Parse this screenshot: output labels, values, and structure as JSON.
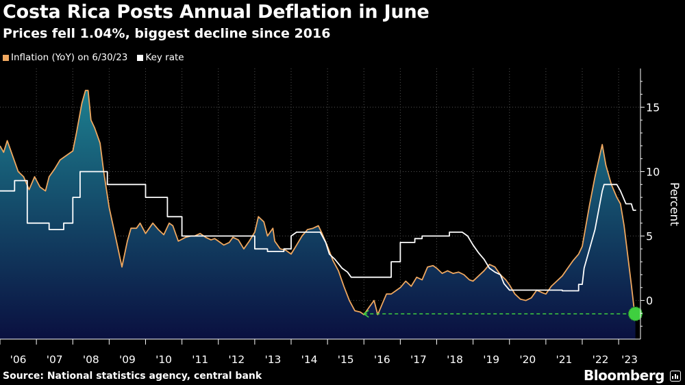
{
  "title": "Costa Rica Posts Annual Deflation in June",
  "subtitle": "Prices fell 1.04%, biggest decline since 2016",
  "legend": {
    "inflation_label": "Inflation (YoY) on 6/30/23",
    "keyrate_label": "Key rate"
  },
  "footer": {
    "source": "Source: National statistics agency, central bank",
    "brand": "Bloomberg"
  },
  "colors": {
    "inflation_line": "#f0a860",
    "keyrate_line": "#ffffff",
    "area_top": "#1d7f8f",
    "area_bottom": "#0a1040",
    "marker": "#3fcf3f",
    "grid": "#555555"
  },
  "chart_data": {
    "type": "line",
    "xlabel": "",
    "ylabel": "Percent",
    "x_range": [
      2006.0,
      2023.6
    ],
    "ylim": [
      -3,
      18
    ],
    "y_ticks": [
      0,
      5,
      10,
      15
    ],
    "x_tick_labels": [
      "'06",
      "'07",
      "'08",
      "'09",
      "'10",
      "'11",
      "'12",
      "'13",
      "'14",
      "'15",
      "'16",
      "'17",
      "'18",
      "'19",
      "'20",
      "'21",
      "'22",
      "'23"
    ],
    "x_tick_years": [
      2006,
      2007,
      2008,
      2009,
      2010,
      2011,
      2012,
      2013,
      2014,
      2015,
      2016,
      2017,
      2018,
      2019,
      2020,
      2021,
      2022,
      2023
    ],
    "grid": "vertical",
    "series": [
      {
        "name": "Inflation (YoY) on 6/30/23",
        "style": "area-line",
        "points": [
          [
            2006.0,
            12.0
          ],
          [
            2006.1,
            11.5
          ],
          [
            2006.2,
            12.4
          ],
          [
            2006.35,
            11.2
          ],
          [
            2006.5,
            10.0
          ],
          [
            2006.65,
            9.6
          ],
          [
            2006.8,
            8.6
          ],
          [
            2006.95,
            9.6
          ],
          [
            2007.1,
            8.8
          ],
          [
            2007.25,
            8.5
          ],
          [
            2007.35,
            9.6
          ],
          [
            2007.5,
            10.2
          ],
          [
            2007.65,
            10.9
          ],
          [
            2007.8,
            11.2
          ],
          [
            2007.9,
            11.4
          ],
          [
            2008.0,
            11.6
          ],
          [
            2008.1,
            13.0
          ],
          [
            2008.25,
            15.3
          ],
          [
            2008.35,
            16.3
          ],
          [
            2008.42,
            16.3
          ],
          [
            2008.5,
            14.0
          ],
          [
            2008.6,
            13.4
          ],
          [
            2008.75,
            12.2
          ],
          [
            2008.85,
            10.0
          ],
          [
            2009.0,
            7.2
          ],
          [
            2009.2,
            4.6
          ],
          [
            2009.35,
            2.6
          ],
          [
            2009.5,
            4.6
          ],
          [
            2009.6,
            5.6
          ],
          [
            2009.75,
            5.6
          ],
          [
            2009.85,
            6.0
          ],
          [
            2010.0,
            5.2
          ],
          [
            2010.2,
            6.0
          ],
          [
            2010.35,
            5.5
          ],
          [
            2010.5,
            5.1
          ],
          [
            2010.65,
            6.0
          ],
          [
            2010.75,
            5.8
          ],
          [
            2010.9,
            4.6
          ],
          [
            2011.1,
            4.9
          ],
          [
            2011.25,
            5.0
          ],
          [
            2011.35,
            5.0
          ],
          [
            2011.5,
            5.2
          ],
          [
            2011.65,
            4.9
          ],
          [
            2011.8,
            4.7
          ],
          [
            2011.9,
            4.8
          ],
          [
            2012.0,
            4.6
          ],
          [
            2012.15,
            4.3
          ],
          [
            2012.3,
            4.5
          ],
          [
            2012.4,
            4.9
          ],
          [
            2012.55,
            4.7
          ],
          [
            2012.7,
            4.0
          ],
          [
            2012.85,
            4.6
          ],
          [
            2013.0,
            5.3
          ],
          [
            2013.1,
            6.5
          ],
          [
            2013.25,
            6.1
          ],
          [
            2013.35,
            5.0
          ],
          [
            2013.5,
            5.6
          ],
          [
            2013.55,
            4.6
          ],
          [
            2013.7,
            4.0
          ],
          [
            2013.85,
            3.9
          ],
          [
            2014.0,
            3.6
          ],
          [
            2014.15,
            4.3
          ],
          [
            2014.3,
            5.0
          ],
          [
            2014.45,
            5.5
          ],
          [
            2014.6,
            5.6
          ],
          [
            2014.75,
            5.8
          ],
          [
            2014.85,
            5.2
          ],
          [
            2015.0,
            4.2
          ],
          [
            2015.15,
            3.1
          ],
          [
            2015.3,
            2.3
          ],
          [
            2015.45,
            1.1
          ],
          [
            2015.6,
            0.0
          ],
          [
            2015.75,
            -0.8
          ],
          [
            2015.9,
            -0.9
          ],
          [
            2016.0,
            -1.1
          ],
          [
            2016.15,
            -0.5
          ],
          [
            2016.28,
            0.0
          ],
          [
            2016.38,
            -1.1
          ],
          [
            2016.5,
            -0.3
          ],
          [
            2016.62,
            0.5
          ],
          [
            2016.75,
            0.5
          ],
          [
            2016.9,
            0.8
          ],
          [
            2017.0,
            1.0
          ],
          [
            2017.15,
            1.5
          ],
          [
            2017.3,
            1.1
          ],
          [
            2017.45,
            1.8
          ],
          [
            2017.6,
            1.6
          ],
          [
            2017.75,
            2.6
          ],
          [
            2017.9,
            2.7
          ],
          [
            2018.0,
            2.5
          ],
          [
            2018.15,
            2.1
          ],
          [
            2018.3,
            2.3
          ],
          [
            2018.45,
            2.1
          ],
          [
            2018.6,
            2.2
          ],
          [
            2018.75,
            2.0
          ],
          [
            2018.9,
            1.6
          ],
          [
            2019.0,
            1.5
          ],
          [
            2019.15,
            1.9
          ],
          [
            2019.3,
            2.3
          ],
          [
            2019.45,
            2.8
          ],
          [
            2019.6,
            2.6
          ],
          [
            2019.75,
            2.0
          ],
          [
            2019.9,
            1.6
          ],
          [
            2020.0,
            1.2
          ],
          [
            2020.15,
            0.5
          ],
          [
            2020.3,
            0.1
          ],
          [
            2020.45,
            0.0
          ],
          [
            2020.6,
            0.2
          ],
          [
            2020.75,
            0.8
          ],
          [
            2020.9,
            0.6
          ],
          [
            2021.0,
            0.5
          ],
          [
            2021.15,
            1.1
          ],
          [
            2021.3,
            1.5
          ],
          [
            2021.45,
            1.9
          ],
          [
            2021.6,
            2.5
          ],
          [
            2021.75,
            3.1
          ],
          [
            2021.9,
            3.6
          ],
          [
            2022.0,
            4.2
          ],
          [
            2022.1,
            5.8
          ],
          [
            2022.2,
            7.4
          ],
          [
            2022.35,
            9.6
          ],
          [
            2022.5,
            11.5
          ],
          [
            2022.55,
            12.1
          ],
          [
            2022.65,
            10.5
          ],
          [
            2022.8,
            9.0
          ],
          [
            2022.95,
            8.0
          ],
          [
            2023.05,
            7.5
          ],
          [
            2023.15,
            5.8
          ],
          [
            2023.25,
            3.5
          ],
          [
            2023.35,
            1.2
          ],
          [
            2023.42,
            -0.5
          ],
          [
            2023.46,
            -1.04
          ]
        ]
      },
      {
        "name": "Key rate",
        "style": "step",
        "points": [
          [
            2006.0,
            8.5
          ],
          [
            2006.4,
            8.5
          ],
          [
            2006.4,
            9.3
          ],
          [
            2006.75,
            9.3
          ],
          [
            2006.75,
            6.0
          ],
          [
            2007.35,
            6.0
          ],
          [
            2007.35,
            5.5
          ],
          [
            2007.75,
            5.5
          ],
          [
            2007.75,
            6.0
          ],
          [
            2008.0,
            6.0
          ],
          [
            2008.0,
            8.0
          ],
          [
            2008.2,
            8.0
          ],
          [
            2008.2,
            10.0
          ],
          [
            2008.95,
            10.0
          ],
          [
            2008.95,
            9.0
          ],
          [
            2009.55,
            9.0
          ],
          [
            2009.55,
            9.0
          ],
          [
            2010.0,
            9.0
          ],
          [
            2010.0,
            8.0
          ],
          [
            2010.6,
            8.0
          ],
          [
            2010.6,
            6.5
          ],
          [
            2011.0,
            6.5
          ],
          [
            2011.0,
            5.0
          ],
          [
            2013.0,
            5.0
          ],
          [
            2013.0,
            4.0
          ],
          [
            2013.35,
            4.0
          ],
          [
            2013.35,
            3.8
          ],
          [
            2013.8,
            3.8
          ],
          [
            2013.8,
            4.0
          ],
          [
            2014.0,
            4.0
          ],
          [
            2014.0,
            5.0
          ],
          [
            2014.15,
            5.3
          ],
          [
            2014.8,
            5.3
          ],
          [
            2014.95,
            4.5
          ],
          [
            2015.05,
            3.6
          ],
          [
            2015.2,
            3.2
          ],
          [
            2015.4,
            2.5
          ],
          [
            2015.55,
            2.2
          ],
          [
            2015.65,
            1.8
          ],
          [
            2016.75,
            1.8
          ],
          [
            2016.75,
            3.0
          ],
          [
            2017.0,
            3.0
          ],
          [
            2017.0,
            4.5
          ],
          [
            2017.4,
            4.5
          ],
          [
            2017.4,
            4.8
          ],
          [
            2017.6,
            4.8
          ],
          [
            2017.6,
            5.0
          ],
          [
            2018.35,
            5.0
          ],
          [
            2018.35,
            5.3
          ],
          [
            2018.7,
            5.3
          ],
          [
            2018.85,
            5.0
          ],
          [
            2019.0,
            4.3
          ],
          [
            2019.15,
            3.7
          ],
          [
            2019.3,
            3.2
          ],
          [
            2019.45,
            2.5
          ],
          [
            2019.6,
            2.2
          ],
          [
            2019.75,
            2.0
          ],
          [
            2019.85,
            1.3
          ],
          [
            2020.0,
            0.8
          ],
          [
            2021.45,
            0.8
          ],
          [
            2021.45,
            0.75
          ],
          [
            2021.9,
            0.75
          ],
          [
            2021.9,
            1.25
          ],
          [
            2022.0,
            1.25
          ],
          [
            2022.05,
            2.5
          ],
          [
            2022.15,
            3.5
          ],
          [
            2022.35,
            5.5
          ],
          [
            2022.45,
            7.0
          ],
          [
            2022.55,
            8.5
          ],
          [
            2022.6,
            9.0
          ],
          [
            2022.95,
            9.0
          ],
          [
            2023.05,
            8.5
          ],
          [
            2023.2,
            7.5
          ],
          [
            2023.35,
            7.5
          ],
          [
            2023.4,
            7.0
          ],
          [
            2023.48,
            7.0
          ]
        ]
      }
    ],
    "annotations": [
      {
        "type": "dashed-line",
        "from": [
          2016.0,
          -1.04
        ],
        "to": [
          2023.46,
          -1.04
        ],
        "arrow_at_start": true
      },
      {
        "type": "marker",
        "at": [
          2023.46,
          -1.04
        ],
        "value": -1.04
      }
    ]
  }
}
